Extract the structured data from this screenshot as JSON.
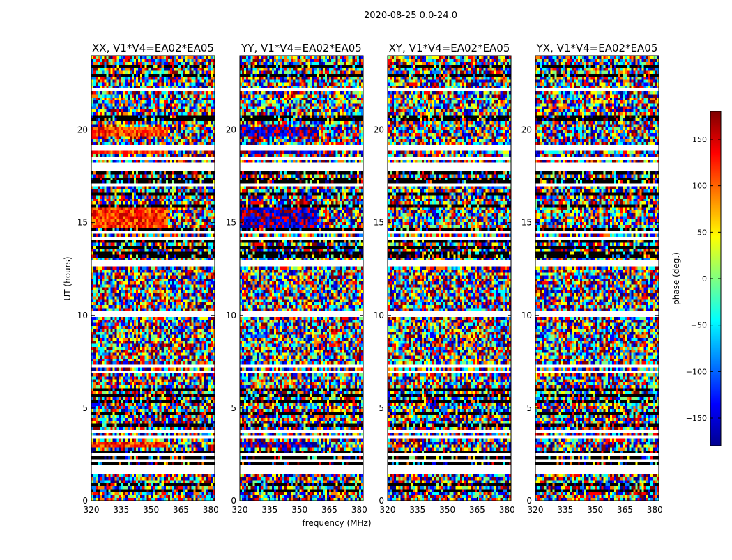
{
  "chart_data": {
    "type": "heatmap",
    "title": "2020-08-25 0.0-24.0",
    "xlabel": "frequency (MHz)",
    "ylabel": "UT (hours)",
    "xlim": [
      320,
      382
    ],
    "ylim": [
      0,
      24
    ],
    "x_ticks": [
      320,
      335,
      350,
      365,
      380
    ],
    "y_ticks": [
      0,
      5,
      10,
      15,
      20
    ],
    "panels": [
      {
        "id": "xx",
        "title": "XX, V1*V4=EA02*EA05",
        "hot_hue": "red"
      },
      {
        "id": "yy",
        "title": "YY, V1*V4=EA02*EA05",
        "hot_hue": "blue"
      },
      {
        "id": "xy",
        "title": "XY, V1*V4=EA02*EA05",
        "hot_hue": "none"
      },
      {
        "id": "yx",
        "title": "YX, V1*V4=EA02*EA05",
        "hot_hue": "none"
      }
    ],
    "flagged_hours": [
      1.5,
      1.6,
      1.7,
      2.05,
      2.4,
      3.4,
      3.65,
      6.85,
      7.15,
      9.95,
      10.05,
      12.6,
      12.75,
      14.15,
      14.35,
      16.9,
      17.75,
      17.9,
      18.15,
      18.35,
      18.9,
      19.05,
      22.1
    ],
    "dark_hours": [
      0.55,
      0.85,
      1.95,
      2.25,
      2.55,
      4.05,
      4.6,
      5.2,
      5.65,
      5.95,
      12.85,
      13.05,
      13.3,
      13.55,
      13.9,
      14.0,
      14.5,
      15.9,
      16.55,
      17.05,
      17.3,
      17.6,
      20.4,
      20.6,
      22.9,
      23.4
    ],
    "colorbar": {
      "label": "phase (deg.)",
      "range": [
        -180,
        180
      ],
      "ticks": [
        150,
        100,
        50,
        0,
        -50,
        -100,
        -150
      ],
      "tick_labels": [
        "150",
        "100",
        "50",
        "0",
        "−50",
        "−100",
        "−150"
      ],
      "colormap": [
        "#00008f",
        "#0000ff",
        "#0080ff",
        "#00ffff",
        "#80ff80",
        "#ffff00",
        "#ff8000",
        "#ff0000",
        "#800000"
      ]
    }
  }
}
